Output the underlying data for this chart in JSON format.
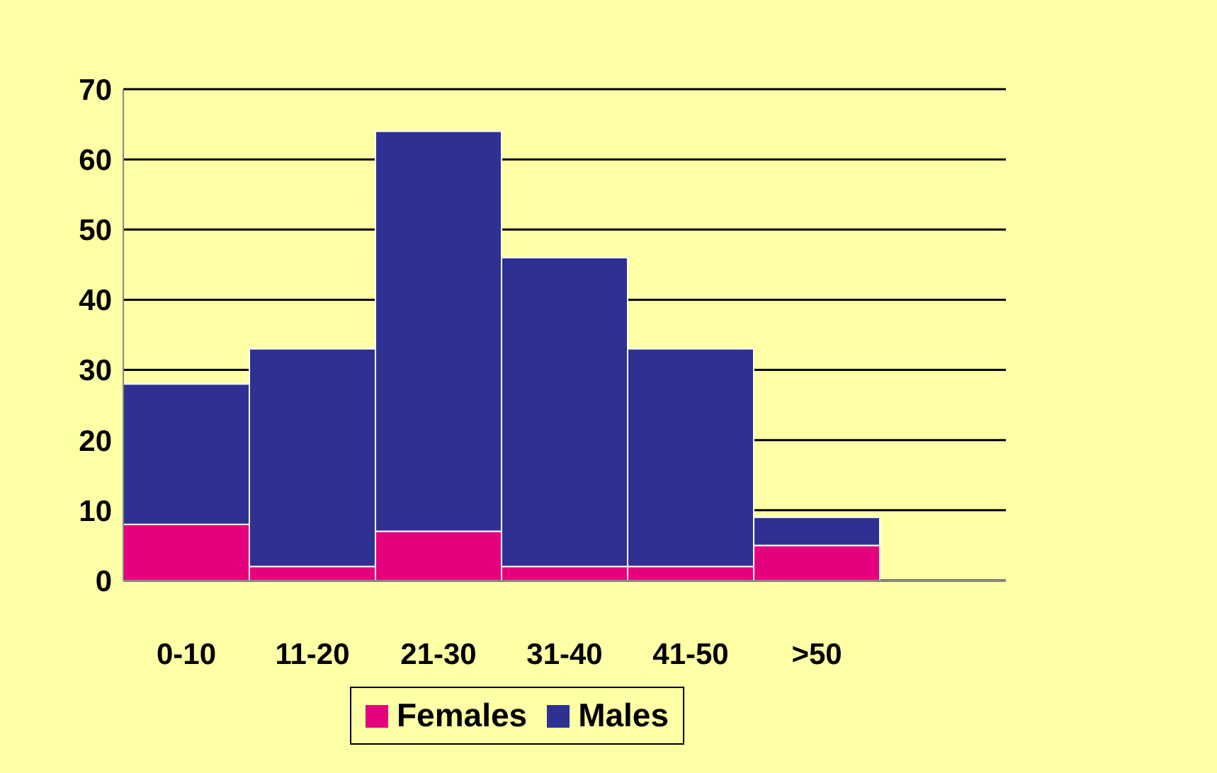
{
  "chart_data": {
    "type": "bar",
    "stacked": true,
    "categories": [
      "0-10",
      "11-20",
      "21-30",
      "31-40",
      "41-50",
      ">50",
      null
    ],
    "series": [
      {
        "name": "Females",
        "color": "#e5007d",
        "values": [
          8,
          2,
          7,
          2,
          2,
          5,
          null
        ]
      },
      {
        "name": "Males",
        "color": "#2e3192",
        "values": [
          20,
          31,
          57,
          44,
          31,
          4,
          null
        ]
      }
    ],
    "ylim": [
      0,
      70
    ],
    "yticks": [
      0,
      10,
      20,
      30,
      40,
      50,
      60,
      70
    ],
    "grid": "y",
    "legend": "bottom"
  }
}
